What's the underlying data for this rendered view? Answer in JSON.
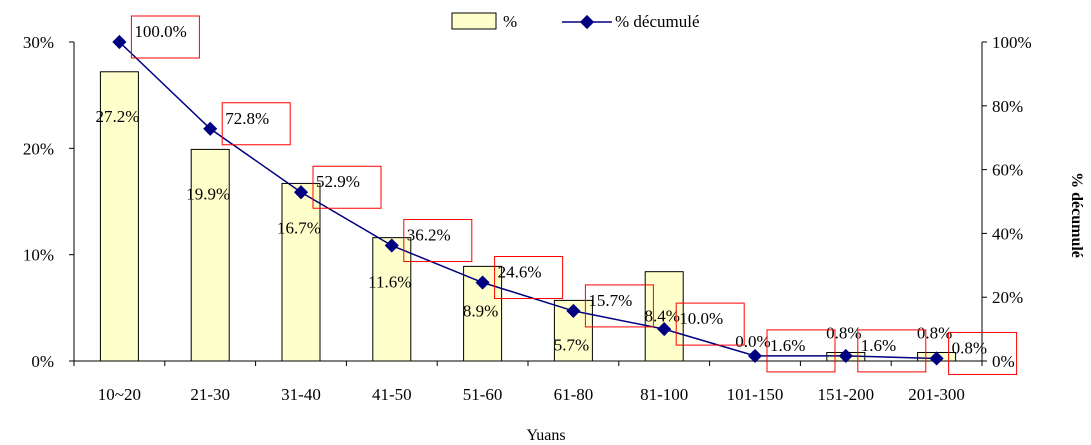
{
  "chart_data": {
    "type": "bar",
    "title": "",
    "xlabel": "Yuans",
    "ylabel": "",
    "y2label": "% décumulé",
    "categories": [
      "10~20",
      "21-30",
      "31-40",
      "41-50",
      "51-60",
      "61-80",
      "81-100",
      "101-150",
      "151-200",
      "201-300"
    ],
    "series": [
      {
        "name": "%",
        "type": "bar",
        "axis": "left",
        "values": [
          27.2,
          19.9,
          16.7,
          11.6,
          8.9,
          5.7,
          8.4,
          0.0,
          0.8,
          0.8
        ],
        "labels": [
          "27.2%",
          "19.9%",
          "16.7%",
          "11.6%",
          "8.9%",
          "5.7%",
          "8.4%",
          "0.0%",
          "0.8%",
          "0.8%"
        ],
        "color": "#ffffcc"
      },
      {
        "name": "% décumulé",
        "type": "line",
        "axis": "right",
        "values": [
          100.0,
          72.8,
          52.9,
          36.2,
          24.6,
          15.7,
          10.0,
          1.6,
          1.6,
          0.8
        ],
        "labels": [
          "100.0%",
          "72.8%",
          "52.9%",
          "36.2%",
          "24.6%",
          "15.7%",
          "10.0%",
          "1.6%",
          "1.6%",
          "0.8%"
        ],
        "color": "#000080"
      }
    ],
    "ylim": [
      0,
      30
    ],
    "yticks": [
      "0%",
      "10%",
      "20%",
      "30%"
    ],
    "y2lim": [
      0,
      100
    ],
    "y2ticks": [
      "0%",
      "20%",
      "40%",
      "60%",
      "80%",
      "100%"
    ],
    "grid": false,
    "legend": "top-center",
    "label_box_color": "#ff0000"
  }
}
